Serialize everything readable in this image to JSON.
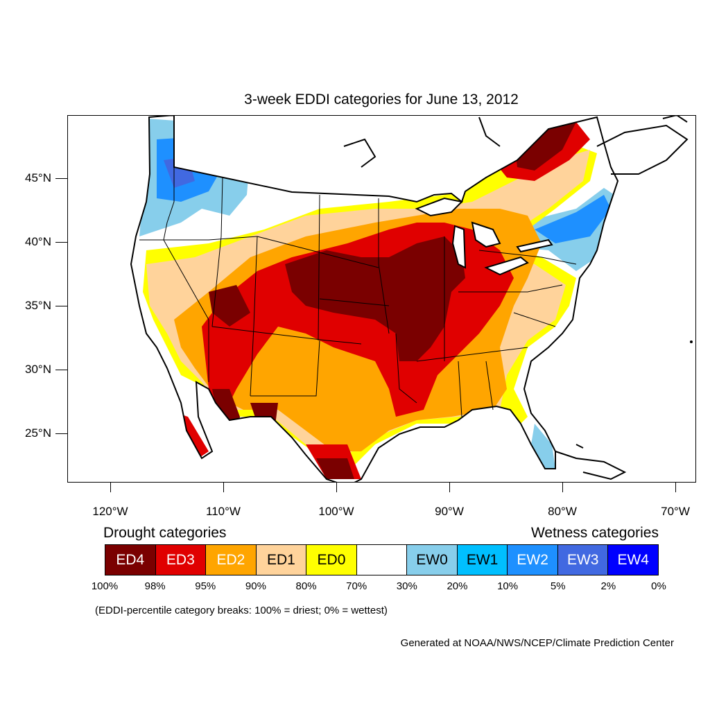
{
  "title": "3-week EDDI categories for June 13, 2012",
  "lat_labels": [
    "45°N",
    "40°N",
    "35°N",
    "30°N",
    "25°N"
  ],
  "lon_labels": [
    "120°W",
    "110°W",
    "100°W",
    "90°W",
    "80°W",
    "70°W"
  ],
  "legend": {
    "drought_heading": "Drought categories",
    "wetness_heading": "Wetness categories",
    "categories": [
      {
        "label": "ED4",
        "color": "#7a0000",
        "text_color": "#ffffff"
      },
      {
        "label": "ED3",
        "color": "#e00000",
        "text_color": "#ffffff"
      },
      {
        "label": "ED2",
        "color": "#ffa500",
        "text_color": "#ffffff"
      },
      {
        "label": "ED1",
        "color": "#ffd39b",
        "text_color": "#000000"
      },
      {
        "label": "ED0",
        "color": "#ffff00",
        "text_color": "#000000"
      },
      {
        "label": "",
        "color": "#ffffff",
        "text_color": "#000000"
      },
      {
        "label": "EW0",
        "color": "#87ceeb",
        "text_color": "#000000"
      },
      {
        "label": "EW1",
        "color": "#00bfff",
        "text_color": "#000000"
      },
      {
        "label": "EW2",
        "color": "#1e90ff",
        "text_color": "#ffffff"
      },
      {
        "label": "EW3",
        "color": "#4169e1",
        "text_color": "#ffffff"
      },
      {
        "label": "EW4",
        "color": "#0000ff",
        "text_color": "#ffffff"
      }
    ],
    "breaks": [
      "100%",
      "98%",
      "95%",
      "90%",
      "80%",
      "70%",
      "30%",
      "20%",
      "10%",
      "5%",
      "2%",
      "0%"
    ]
  },
  "note": "(EDDI-percentile category breaks: 100% = driest; 0% = wettest)",
  "credit": "Generated at NOAA/NWS/NCEP/Climate Prediction Center"
}
